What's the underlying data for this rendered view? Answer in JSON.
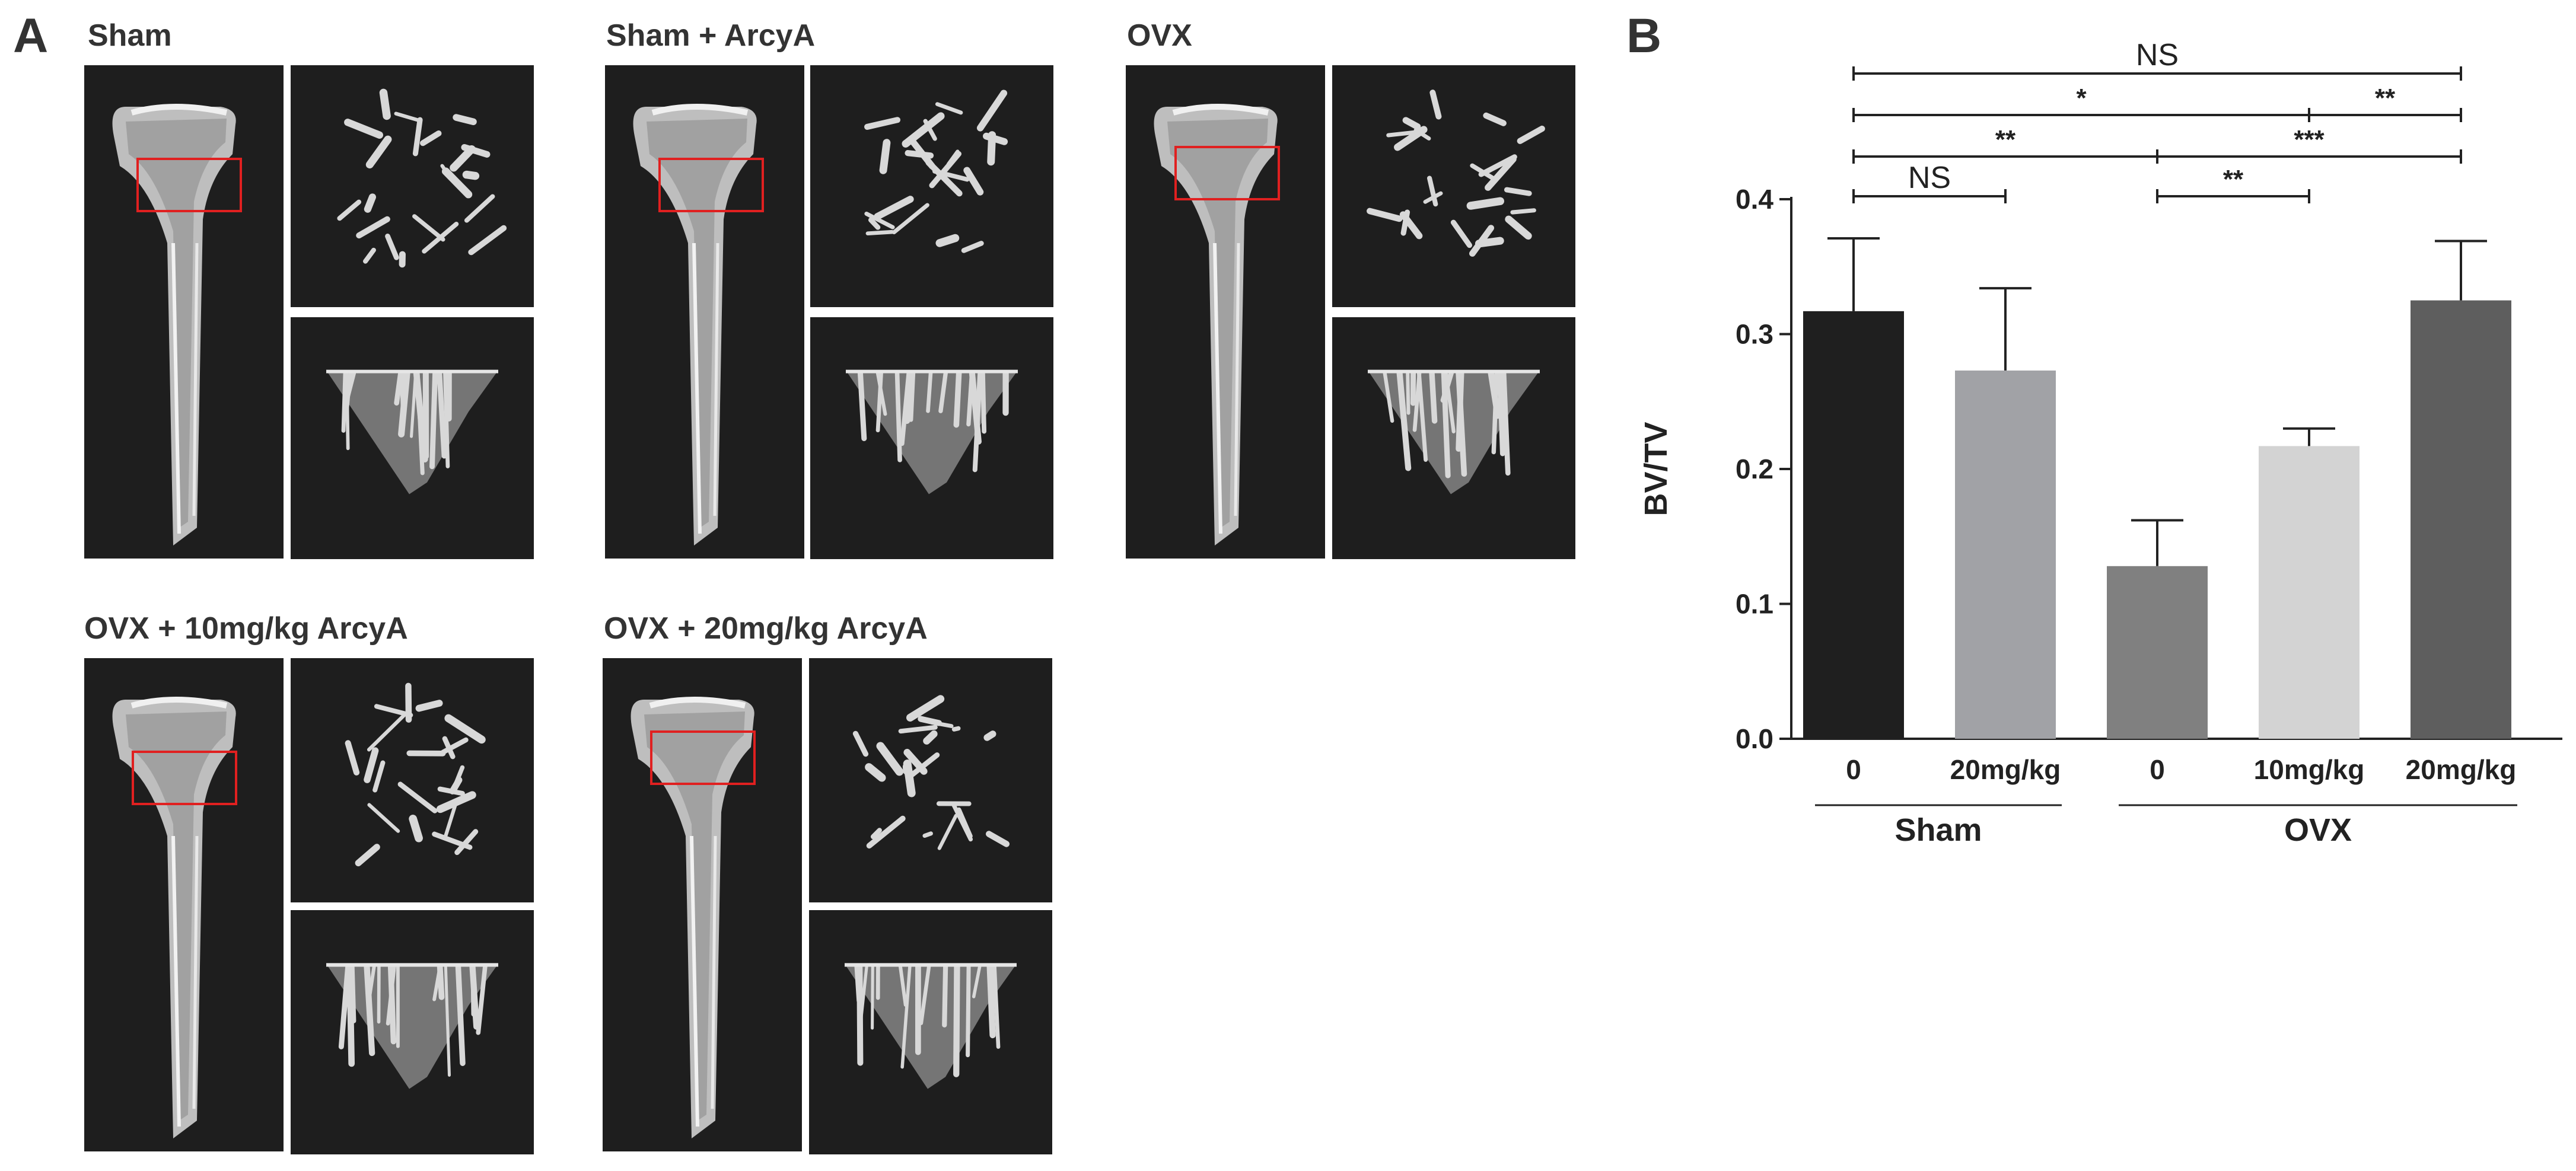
{
  "figure": {
    "panel_a_label": "A",
    "panel_b_label": "B"
  },
  "panel_a": {
    "groups": [
      {
        "title": "Sham"
      },
      {
        "title": "Sham + ArcyA"
      },
      {
        "title": "OVX"
      },
      {
        "title": "OVX + 10mg/kg ArcyA"
      },
      {
        "title": "OVX + 20mg/kg ArcyA"
      }
    ],
    "colors": {
      "background": "#1e1e1e",
      "bone": "#d8d8d8",
      "roi_box": "#e02020"
    }
  },
  "chart_data": {
    "type": "bar",
    "ylabel": "BV/TV",
    "ylim": [
      0.0,
      0.4
    ],
    "yticks": [
      "0.0",
      "0.1",
      "0.2",
      "0.3",
      "0.4"
    ],
    "categories": [
      "0",
      "20mg/kg",
      "0",
      "10mg/kg",
      "20mg/kg"
    ],
    "groups": [
      {
        "label": "Sham",
        "categories": [
          "0",
          "20mg/kg"
        ]
      },
      {
        "label": "OVX",
        "categories": [
          "0",
          "10mg/kg",
          "20mg/kg"
        ]
      }
    ],
    "values": [
      0.317,
      0.273,
      0.128,
      0.217,
      0.325
    ],
    "errors": [
      0.054,
      0.061,
      0.034,
      0.013,
      0.044
    ],
    "bar_colors": [
      "#1f1f1f",
      "#a1a2a6",
      "#808080",
      "#d3d3d3",
      "#5e5e5e"
    ],
    "significance": [
      {
        "from": 0,
        "to": 4,
        "label": "NS"
      },
      {
        "from": 0,
        "to": 3,
        "label": "*"
      },
      {
        "from": 3,
        "to": 4,
        "label": "**"
      },
      {
        "from": 0,
        "to": 2,
        "label": "**"
      },
      {
        "from": 2,
        "to": 4,
        "label": "***"
      },
      {
        "from": 0,
        "to": 1,
        "label": "NS"
      },
      {
        "from": 2,
        "to": 3,
        "label": "**"
      }
    ]
  }
}
